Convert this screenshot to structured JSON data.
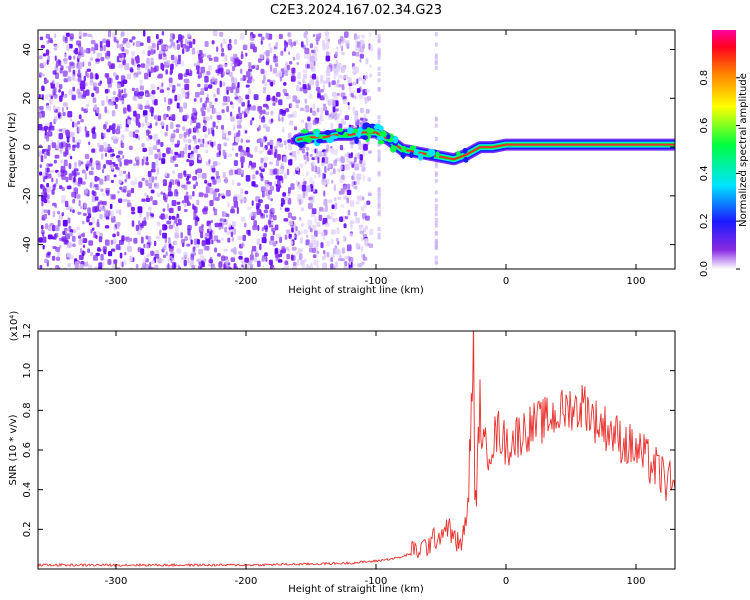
{
  "title": "C2E3.2024.167.02.34.G23",
  "chart_data": [
    {
      "type": "heatmap",
      "title": "",
      "xlabel": "Height of straight line (km)",
      "ylabel": "Frequency (Hz)",
      "xlim": [
        -360,
        130
      ],
      "ylim": [
        -50,
        48
      ],
      "x_ticks": [
        "-300",
        "-200",
        "-100",
        "0",
        "100"
      ],
      "y_ticks": [
        "-40",
        "-20",
        "0",
        "20",
        "40"
      ],
      "colorbar": {
        "label": "Normalized spectral amplitude",
        "range": [
          0,
          1
        ],
        "ticks": [
          "0.0",
          "0.2",
          "0.4",
          "0.6",
          "0.8"
        ]
      },
      "signal_track": {
        "x": [
          -160,
          -150,
          -140,
          -130,
          -120,
          -110,
          -100,
          -90,
          -80,
          -70,
          -60,
          -50,
          -40,
          -30,
          -20,
          -10,
          0,
          20,
          60,
          100,
          130
        ],
        "y": [
          3,
          4,
          4,
          5,
          5,
          6,
          6,
          3,
          -1,
          -2,
          -3,
          -4,
          -5,
          -3,
          0,
          0,
          1,
          1,
          1,
          1,
          1
        ]
      },
      "grid": false
    },
    {
      "type": "line",
      "title": "",
      "xlabel": "Height of straight line (km)",
      "ylabel": "SNR (10 * v/v)",
      "y_multiplier": "(x10⁴)",
      "xlim": [
        -360,
        130
      ],
      "ylim": [
        0,
        1.2
      ],
      "x_ticks": [
        "-300",
        "-200",
        "-100",
        "0",
        "100"
      ],
      "y_ticks": [
        "0.2",
        "0.4",
        "0.6",
        "0.8",
        "1.0",
        "1.2"
      ],
      "series": [
        {
          "color": "#e8302c",
          "x": [
            -360,
            -300,
            -250,
            -200,
            -150,
            -120,
            -100,
            -80,
            -70,
            -60,
            -50,
            -45,
            -40,
            -35,
            -30,
            -28,
            -26,
            -25,
            -24,
            -22,
            -20,
            -18,
            -15,
            -10,
            -5,
            0,
            10,
            20,
            30,
            40,
            50,
            55,
            60,
            65,
            70,
            80,
            90,
            100,
            110,
            120,
            130
          ],
          "y": [
            0.02,
            0.02,
            0.02,
            0.02,
            0.025,
            0.03,
            0.04,
            0.06,
            0.09,
            0.12,
            0.18,
            0.22,
            0.15,
            0.12,
            0.25,
            0.55,
            0.9,
            1.2,
            0.3,
            0.5,
            0.85,
            0.6,
            0.6,
            0.65,
            0.7,
            0.62,
            0.68,
            0.72,
            0.75,
            0.78,
            0.82,
            0.8,
            0.84,
            0.78,
            0.74,
            0.7,
            0.64,
            0.6,
            0.54,
            0.47,
            0.4
          ]
        }
      ],
      "grid": false
    }
  ]
}
